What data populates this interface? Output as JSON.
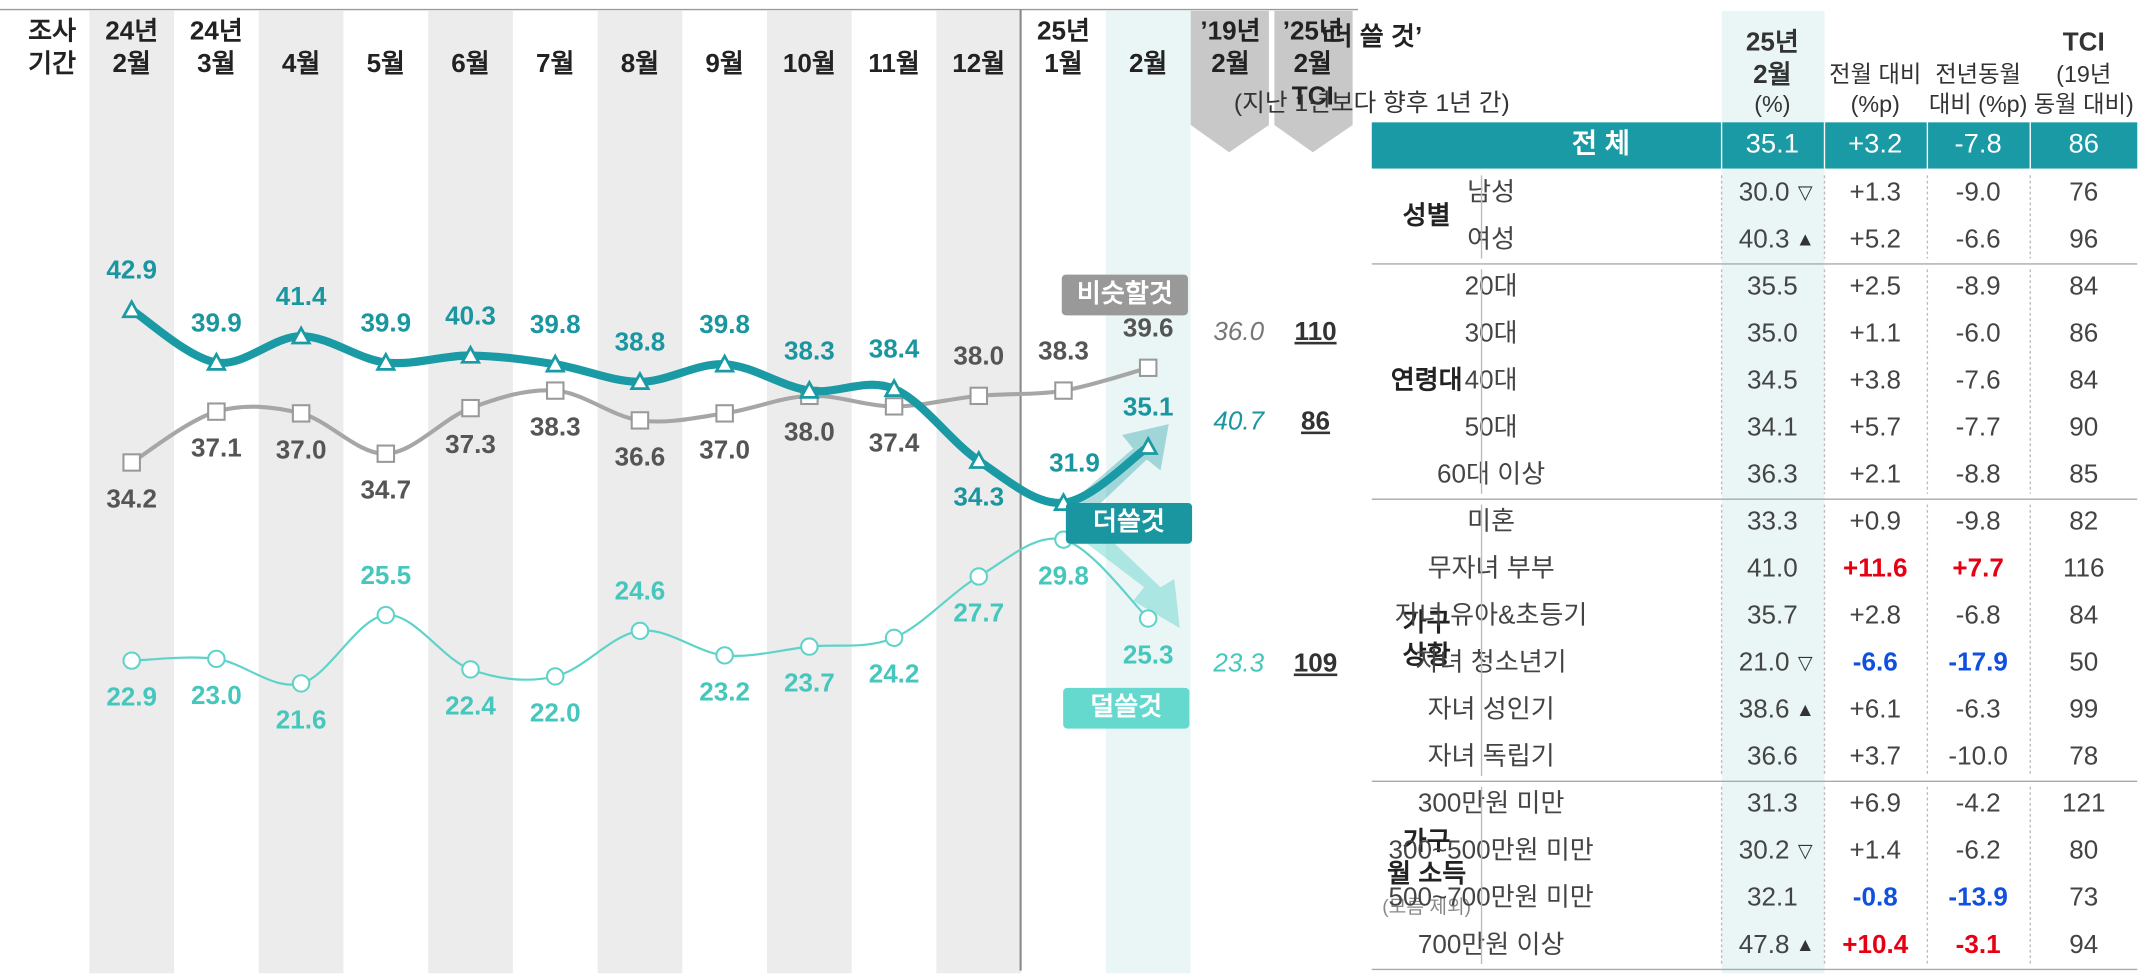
{
  "chart_data": {
    "type": "line",
    "period_label": [
      "조사",
      "기간"
    ],
    "categories": [
      [
        "24년",
        "2월"
      ],
      [
        "24년",
        "3월"
      ],
      [
        "4월"
      ],
      [
        "5월"
      ],
      [
        "6월"
      ],
      [
        "7월"
      ],
      [
        "8월"
      ],
      [
        "9월"
      ],
      [
        "10월"
      ],
      [
        "11월"
      ],
      [
        "12월"
      ],
      [
        "25년",
        "1월"
      ],
      [
        "2월"
      ]
    ],
    "compare_headers": [
      [
        "’19년",
        "2월"
      ],
      [
        "’25년",
        "2월",
        "TCI"
      ]
    ],
    "series": [
      {
        "name": "더쓸것",
        "color": "#1a9aa4",
        "label_color": "#1a96a0",
        "values": [
          42.9,
          39.9,
          41.4,
          39.9,
          40.3,
          39.8,
          38.8,
          39.8,
          38.3,
          38.4,
          34.3,
          31.9,
          35.1
        ],
        "value_labels": [
          "42.9",
          "39.9",
          "41.4",
          "39.9",
          "40.3",
          "39.8",
          "38.8",
          "39.8",
          "38.3",
          "38.4",
          "34.3",
          "31.9",
          "35.1"
        ],
        "prev_year": {
          "value": 40.7,
          "label": "40.7"
        },
        "tci": 86
      },
      {
        "name": "비슷할것",
        "color": "#a6a6a6",
        "label_color": "#555555",
        "values": [
          34.2,
          37.1,
          37.0,
          34.7,
          37.3,
          38.3,
          36.6,
          37.0,
          38.0,
          37.4,
          38.0,
          38.3,
          39.6
        ],
        "value_labels": [
          "34.2",
          "37.1",
          "37.0",
          "34.7",
          "37.3",
          "38.3",
          "36.6",
          "37.0",
          "38.0",
          "37.4",
          "38.0",
          "38.3",
          "39.6"
        ],
        "prev_year": {
          "value": 36,
          "label": "36.0"
        },
        "tci": 110
      },
      {
        "name": "덜쓸것",
        "color": "#5fd3c9",
        "label_color": "#45c7bd",
        "values": [
          22.9,
          23.0,
          21.6,
          25.5,
          22.4,
          22.0,
          24.6,
          23.2,
          23.7,
          24.2,
          27.7,
          29.8,
          25.3
        ],
        "value_labels": [
          "22.9",
          "23.0",
          "21.6",
          "25.5",
          "22.4",
          "22.0",
          "24.6",
          "23.2",
          "23.7",
          "24.2",
          "27.7",
          "29.8",
          "25.3"
        ],
        "prev_year": {
          "value": 23.3,
          "label": "23.3"
        },
        "tci": 109
      }
    ]
  },
  "table": {
    "title": "‘더 쓸 것’",
    "subtitle": "(지난 1년보다 향후 1년 간)",
    "headers": [
      [
        "25년",
        "2월",
        "(%)"
      ],
      [
        "전월 대비",
        "(%p)"
      ],
      [
        "전년동월",
        "대비 (%p)"
      ],
      [
        "TCI",
        "(19년",
        "동월 대비)"
      ]
    ],
    "total": {
      "label": "전 체",
      "cells": [
        "35.1",
        "+3.2",
        "-7.8",
        "86"
      ]
    },
    "groups": [
      {
        "label": [
          "성별"
        ],
        "rows": [
          {
            "label": "남성",
            "cells": [
              "30.0",
              "+1.3",
              "-9.0",
              "76"
            ],
            "flag": "▽"
          },
          {
            "label": "여성",
            "cells": [
              "40.3",
              "+5.2",
              "-6.6",
              "96"
            ],
            "flag": "▲"
          }
        ]
      },
      {
        "label": [
          "연령대"
        ],
        "rows": [
          {
            "label": "20대",
            "cells": [
              "35.5",
              "+2.5",
              "-8.9",
              "84"
            ]
          },
          {
            "label": "30대",
            "cells": [
              "35.0",
              "+1.1",
              "-6.0",
              "86"
            ]
          },
          {
            "label": "40대",
            "cells": [
              "34.5",
              "+3.8",
              "-7.6",
              "84"
            ]
          },
          {
            "label": "50대",
            "cells": [
              "34.1",
              "+5.7",
              "-7.7",
              "90"
            ]
          },
          {
            "label": "60대 이상",
            "cells": [
              "36.3",
              "+2.1",
              "-8.8",
              "85"
            ]
          }
        ]
      },
      {
        "label": [
          "가구",
          "상황"
        ],
        "rows": [
          {
            "label": "미혼",
            "cells": [
              "33.3",
              "+0.9",
              "-9.8",
              "82"
            ]
          },
          {
            "label": "무자녀 부부",
            "cells": [
              "41.0",
              "+11.6",
              "+7.7",
              "116"
            ],
            "cell_colors": {
              "1": "#e60012",
              "2": "#e60012"
            }
          },
          {
            "label": "자녀 유아&초등기",
            "cells": [
              "35.7",
              "+2.8",
              "-6.8",
              "84"
            ]
          },
          {
            "label": "자녀 청소년기",
            "cells": [
              "21.0",
              "-6.6",
              "-17.9",
              "50"
            ],
            "flag": "▽",
            "cell_colors": {
              "1": "#1050e0",
              "2": "#1050e0"
            }
          },
          {
            "label": "자녀 성인기",
            "cells": [
              "38.6",
              "+6.1",
              "-6.3",
              "99"
            ],
            "flag": "▲"
          },
          {
            "label": "자녀 독립기",
            "cells": [
              "36.6",
              "+3.7",
              "-10.0",
              "78"
            ]
          }
        ]
      },
      {
        "label": [
          "가구",
          "월 소득"
        ],
        "note": "(모름 제외)",
        "rows": [
          {
            "label": "300만원 미만",
            "cells": [
              "31.3",
              "+6.9",
              "-4.2",
              "121"
            ]
          },
          {
            "label": "300~500만원 미만",
            "cells": [
              "30.2",
              "+1.4",
              "-6.2",
              "80"
            ],
            "flag": "▽"
          },
          {
            "label": "500~700만원 미만",
            "cells": [
              "32.1",
              "-0.8",
              "-13.9",
              "73"
            ],
            "cell_colors": {
              "1": "#1050e0",
              "2": "#1050e0"
            }
          },
          {
            "label": "700만원 이상",
            "cells": [
              "47.8",
              "+10.4",
              "-3.1",
              "94"
            ],
            "flag": "▲",
            "cell_colors": {
              "1": "#e60012",
              "2": "#e60012"
            }
          }
        ]
      }
    ]
  }
}
